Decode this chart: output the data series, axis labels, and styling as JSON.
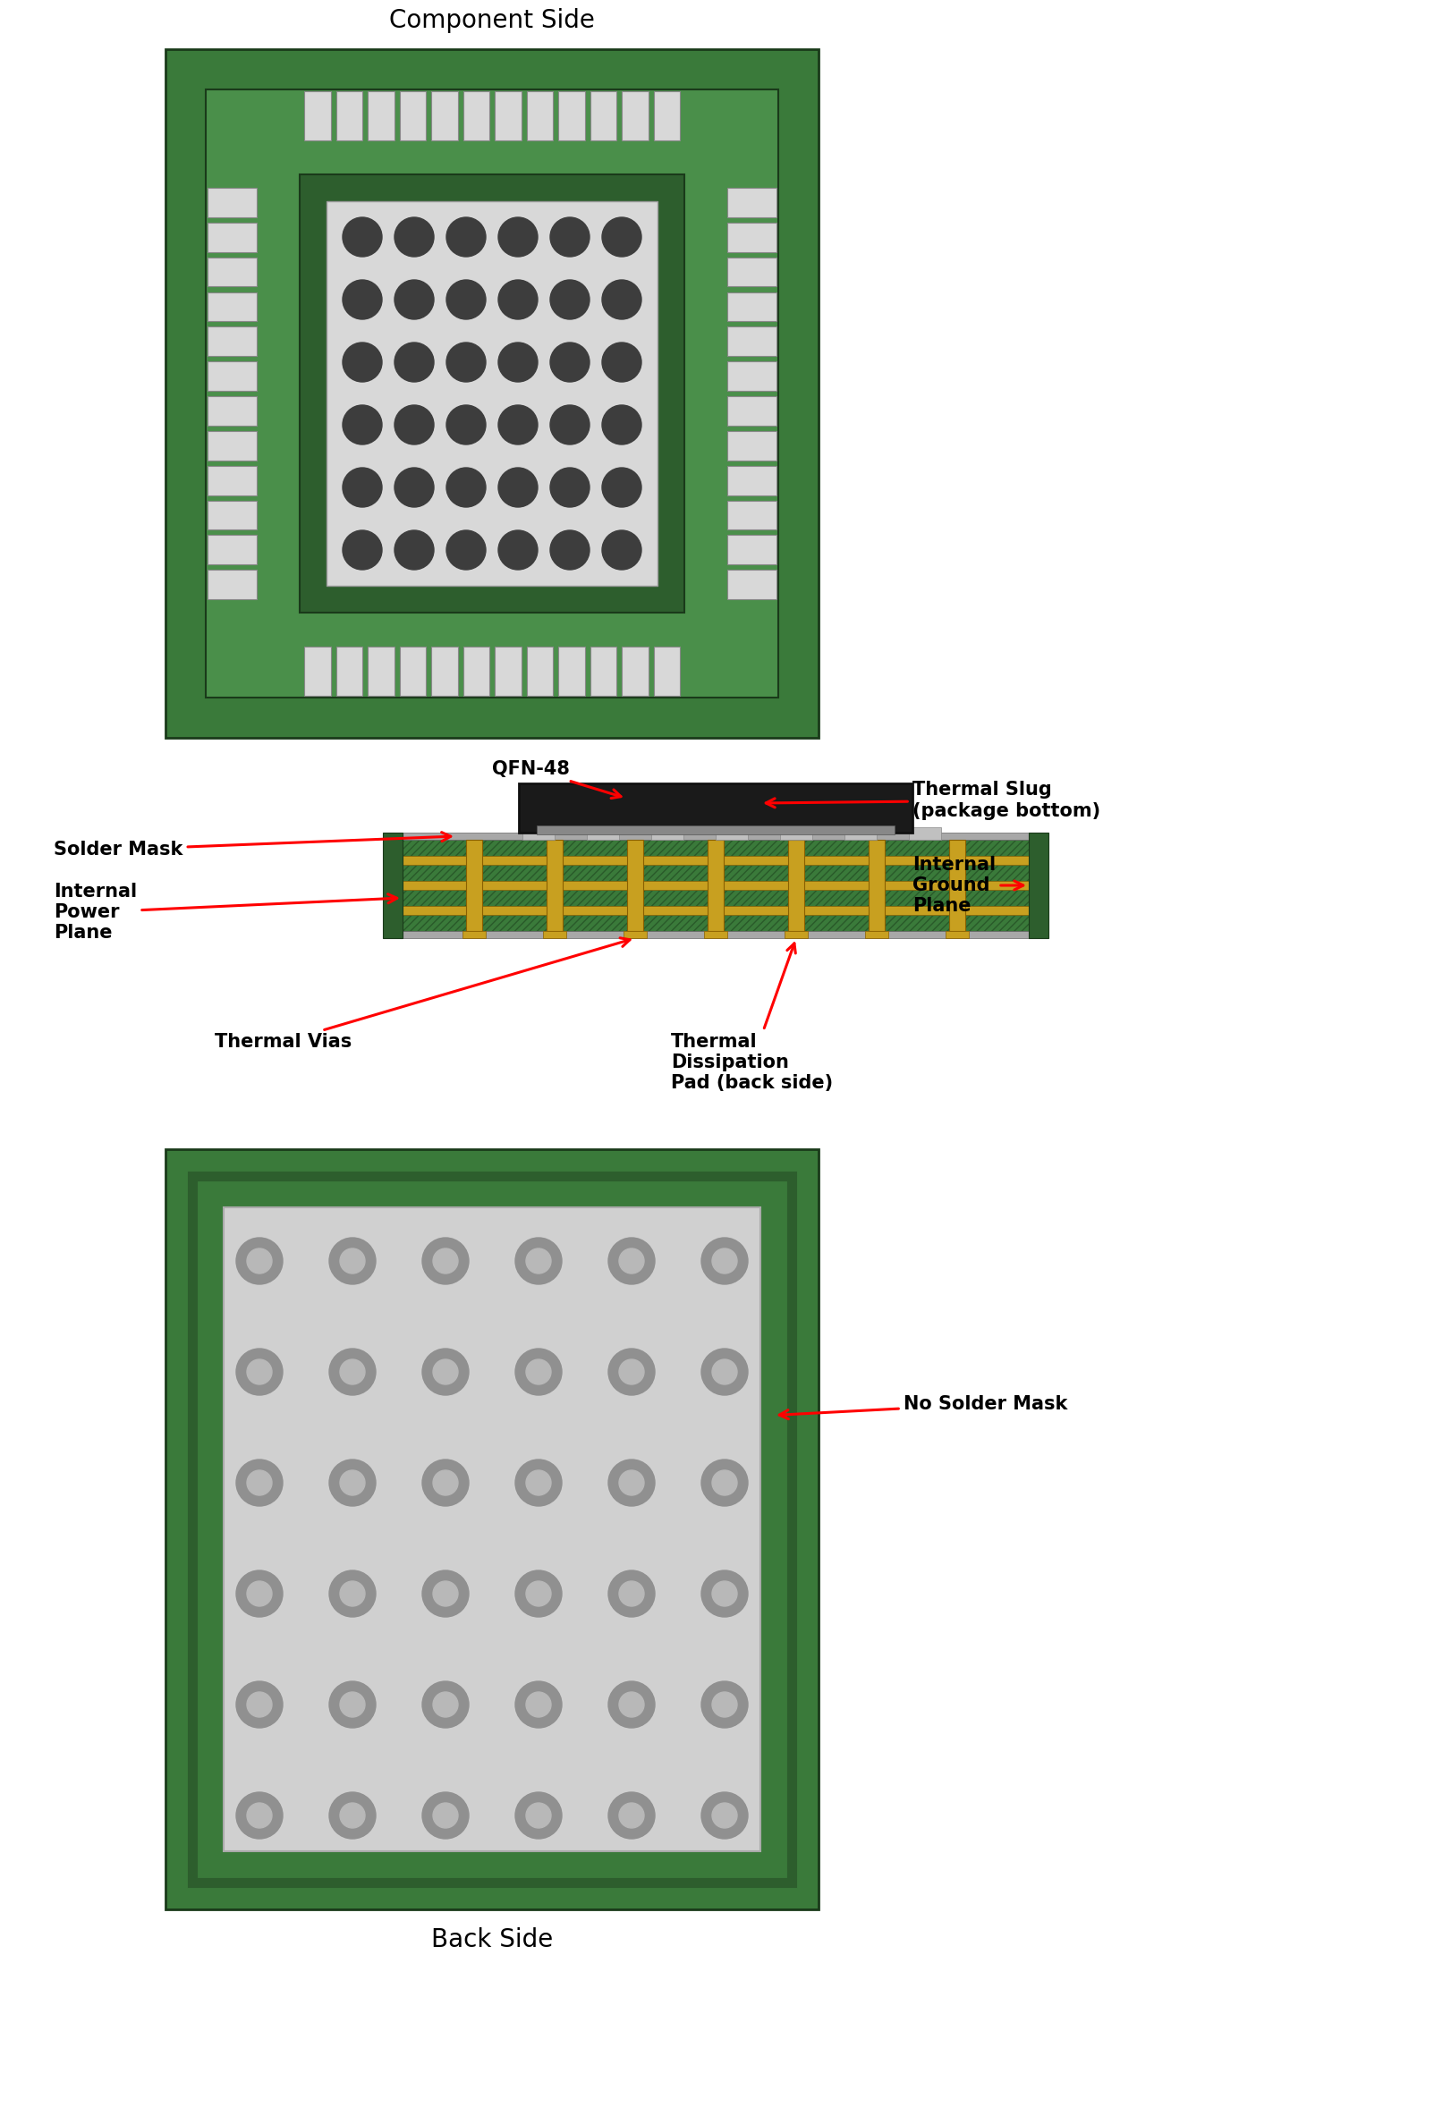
{
  "bg_color": "#ffffff",
  "green_outer": "#3a7a3a",
  "green_inner": "#4a8f4a",
  "green_darker": "#2d5e2d",
  "pad_color": "#d8d8d8",
  "via_color_top": "#3d3d3d",
  "via_color_back": "#909090",
  "slug_color": "#1a1a1a",
  "gold_color": "#c8a020",
  "green_stripe": "#3a7a3a",
  "solder_gray": "#a8a8a8",
  "thermal_pad_back": "#d0d0d0",
  "title_top": "Component Side",
  "title_bottom": "Back Side",
  "label_qfn": "QFN-48",
  "label_solder_mask": "Solder Mask",
  "label_power": "Internal\nPower\nPlane",
  "label_slug": "Thermal Slug\n(package bottom)",
  "label_ground": "Internal\nGround\nPlane",
  "label_vias": "Thermal Vias",
  "label_diss": "Thermal\nDissipation\nPad (back side)",
  "label_no_solder": "No Solder Mask"
}
